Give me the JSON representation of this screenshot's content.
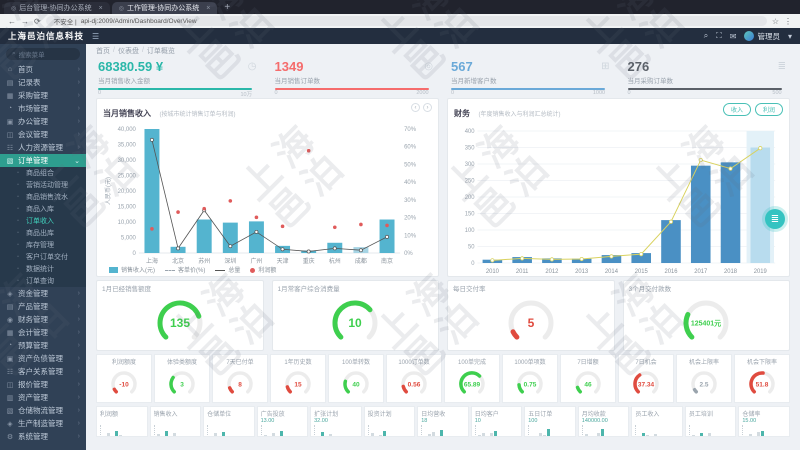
{
  "browser": {
    "tabs": [
      {
        "title": "后台管理-协同办公系统",
        "favicon": "◎",
        "close": "×"
      },
      {
        "title": "工作管理-协同办公系统",
        "favicon": "◎",
        "close": "×"
      }
    ],
    "new_tab": "+",
    "back": "←",
    "forward": "→",
    "refresh": "⟳",
    "security": "不安全 |",
    "url": "api-dj:2009/Admin/Dashboard/OverView",
    "star": "☆",
    "more": "⋮"
  },
  "header": {
    "brand": "上海邑泊信息科技",
    "hamburger": "☰",
    "search_icon": "⌕",
    "fullscreen_icon": "⛶",
    "mail_icon": "✉",
    "user": "管理员",
    "caret": "▾"
  },
  "sidebar": {
    "search_placeholder": "搜索菜单",
    "search_icon": "⌕",
    "items_top": [
      {
        "icon": "⌂",
        "label": "首页"
      },
      {
        "icon": "▤",
        "label": "记录表"
      },
      {
        "icon": "▦",
        "label": "采购管理"
      },
      {
        "icon": "◔",
        "label": "市场管理"
      },
      {
        "icon": "▣",
        "label": "办公管理"
      },
      {
        "icon": "◫",
        "label": "会议管理"
      },
      {
        "icon": "☷",
        "label": "人力资源管理"
      }
    ],
    "active": {
      "icon": "▧",
      "label": "订单管理",
      "caret": "⌄"
    },
    "submenu": [
      {
        "label": "商品组合"
      },
      {
        "label": "营销活动管理"
      },
      {
        "label": "商品销售流水"
      },
      {
        "label": "商品入库"
      },
      {
        "label": "订单收入",
        "active": true
      },
      {
        "label": "商品出库"
      },
      {
        "label": "库存管理"
      },
      {
        "label": "客户订单交付"
      },
      {
        "label": "数据统计"
      },
      {
        "label": "订单查询"
      }
    ],
    "items_bottom": [
      {
        "icon": "◈",
        "label": "资金管理"
      },
      {
        "icon": "▤",
        "label": "产品管理"
      },
      {
        "icon": "◉",
        "label": "财务管理"
      },
      {
        "icon": "▦",
        "label": "会计管理"
      },
      {
        "icon": "◔",
        "label": "预算管理"
      },
      {
        "icon": "▣",
        "label": "资产负债管理"
      },
      {
        "icon": "☷",
        "label": "客户关系管理"
      },
      {
        "icon": "◫",
        "label": "报价管理"
      },
      {
        "icon": "▥",
        "label": "资产管理"
      },
      {
        "icon": "▧",
        "label": "仓储物流管理"
      },
      {
        "icon": "◈",
        "label": "生产制造管理"
      },
      {
        "icon": "⚙",
        "label": "系统管理"
      }
    ]
  },
  "breadcrumb": [
    "首页",
    "仪表盘",
    "订单概览"
  ],
  "stats": [
    {
      "value": "68380.59 ¥",
      "label": "当月销售收入金额",
      "color": "#2ab7a9",
      "range": [
        "0",
        "10万"
      ],
      "icon": "◷",
      "icon_name": "clock-icon"
    },
    {
      "value": "1349",
      "label": "当月销售订单数",
      "color": "#f56c6c",
      "range": [
        "0",
        "2000"
      ],
      "icon": "◎",
      "icon_name": "target-icon"
    },
    {
      "value": "567",
      "label": "当月新增客户数",
      "color": "#6aa9d8",
      "range": [
        "0",
        "1000"
      ],
      "icon": "⊞",
      "icon_name": "grid-icon"
    },
    {
      "value": "276",
      "label": "当月采购订单数",
      "color": "#5a6068",
      "range": [
        "0",
        "500"
      ],
      "icon": "≣",
      "icon_name": "list-icon"
    }
  ],
  "watermark": {
    "text": "上海邑泊"
  },
  "chart_data": [
    {
      "type": "bar",
      "title": "当月销售收入",
      "subtitle": "(按城市统计销售订单与利润)",
      "pager": [
        "‹",
        "›"
      ],
      "ylabel": "人民币(元)",
      "categories": [
        "上海",
        "北京",
        "苏州",
        "深圳",
        "广州",
        "天津",
        "重庆",
        "杭州",
        "成都",
        "南京"
      ],
      "series": [
        {
          "name": "销售收入(元)",
          "type": "bar",
          "color": "#54b4cf",
          "values": [
            40000,
            2000,
            10800,
            9800,
            10200,
            2300,
            800,
            3300,
            1900,
            10800
          ]
        },
        {
          "name": "总量",
          "type": "line",
          "color": "#555555",
          "values": [
            36500,
            1500,
            13800,
            2200,
            6800,
            1200,
            500,
            1500,
            900,
            5200
          ]
        },
        {
          "name": "利润额",
          "type": "scatter",
          "color": "#e05b5b",
          "values": [
            7800,
            13200,
            14300,
            16800,
            11500,
            8600,
            33000,
            8300,
            9200,
            8900
          ]
        }
      ],
      "legend": [
        {
          "swatch": "bar",
          "label": "销售收入(元)"
        },
        {
          "swatch": "dash",
          "label": "客单价(%)"
        },
        {
          "swatch": "line",
          "label": "总量"
        },
        {
          "swatch": "dot",
          "label": "利润额"
        }
      ],
      "ylim": [
        0,
        40000
      ],
      "yticks": [
        "40,000",
        "35,000",
        "30,000",
        "25,000",
        "20,000",
        "15,000",
        "10,000",
        "5,000",
        "0"
      ],
      "right_yticks": [
        "70%",
        "60%",
        "50%",
        "40%",
        "30%",
        "20%",
        "10%",
        "0%"
      ],
      "highlight_bar_index": 8
    },
    {
      "type": "bar",
      "title": "财务",
      "subtitle": "(年度销售收入与利润汇总统计)",
      "buttons": [
        "收入",
        "利润"
      ],
      "fab_icon": "≣",
      "categories": [
        "2010",
        "2011",
        "2012",
        "2013",
        "2014",
        "2015",
        "2016",
        "2017",
        "2018",
        "2019"
      ],
      "series": [
        {
          "name": "收入",
          "type": "bar",
          "color": "#4a90c4",
          "values": [
            10,
            18,
            14,
            13,
            24,
            30,
            130,
            295,
            305,
            350
          ]
        },
        {
          "name": "利润",
          "type": "line",
          "color": "#d9d25f",
          "values": [
            8,
            14,
            11,
            12,
            20,
            27,
            125,
            312,
            286,
            348
          ]
        }
      ],
      "highlight_index": 9,
      "ylim": [
        0,
        400
      ],
      "yticks": [
        "400",
        "350",
        "300",
        "250",
        "200",
        "150",
        "100",
        "50",
        "0"
      ],
      "grid": true
    },
    {
      "type": "gauge",
      "items": [
        {
          "label": "1月已经销售额度",
          "value": "135",
          "percent": 76,
          "color": "#3ecf4e"
        },
        {
          "label": "1月常客户综合消费量",
          "value": "10",
          "percent": 68,
          "color": "#3ecf4e"
        },
        {
          "label": "每日交付率",
          "value": "5",
          "percent": 7,
          "color": "#e04b3f"
        },
        {
          "label": "3个月交付款数",
          "value": "125401元",
          "percent": 26,
          "color": "#3ecf4e"
        }
      ]
    },
    {
      "type": "gauge",
      "items": [
        {
          "label": "利润额度",
          "value": "-10",
          "percent": 6,
          "color": "#e04b3f"
        },
        {
          "label": "体验类额度",
          "value": "3",
          "percent": 30,
          "color": "#3ecf4e"
        },
        {
          "label": "7天已付单",
          "value": "8",
          "percent": 9,
          "color": "#e04b3f"
        },
        {
          "label": "1年历史数",
          "value": "15",
          "percent": 11,
          "color": "#e04b3f"
        },
        {
          "label": "100单转数",
          "value": "40",
          "percent": 22,
          "color": "#3ecf4e"
        },
        {
          "label": "1000订单数",
          "value": "0.56",
          "percent": 12,
          "color": "#e04b3f"
        },
        {
          "label": "100单完成",
          "value": "65.89",
          "percent": 66,
          "color": "#3ecf4e"
        },
        {
          "label": "1000单项数",
          "value": "0.75",
          "percent": 15,
          "color": "#3ecf4e"
        },
        {
          "label": "7日增额",
          "value": "46",
          "percent": 10,
          "color": "#3ecf4e"
        },
        {
          "label": "7日机会",
          "value": "37.34",
          "percent": 37,
          "color": "#e04b3f"
        },
        {
          "label": "机会上限率",
          "value": "2.5",
          "percent": 5,
          "color": "#9aa4ad"
        },
        {
          "label": "机会下限率",
          "value": "51.8",
          "percent": 52,
          "color": "#e04b3f"
        }
      ]
    },
    {
      "type": "bar",
      "items": [
        {
          "label": "利润额",
          "value": "",
          "bars": [
            20,
            45,
            15,
            60,
            30
          ]
        },
        {
          "label": "销售收入",
          "value": "",
          "bars": [
            35,
            20,
            55,
            25,
            40
          ]
        },
        {
          "label": "仓储单位",
          "value": "",
          "bars": [
            15,
            40,
            25,
            50,
            20
          ]
        },
        {
          "label": "广告投放",
          "value": "13.00",
          "bars": [
            30,
            15,
            45,
            20,
            60
          ]
        },
        {
          "label": "扩张计划",
          "value": "32.00",
          "bars": [
            25,
            50,
            20,
            35,
            15
          ]
        },
        {
          "label": "投资计划",
          "value": "",
          "bars": [
            40,
            20,
            30,
            55,
            25
          ]
        },
        {
          "label": "日均营收",
          "value": "18",
          "bars": [
            20,
            35,
            50,
            25,
            65
          ]
        },
        {
          "label": "日均客户",
          "value": "10",
          "bars": [
            30,
            45,
            20,
            40,
            55
          ]
        },
        {
          "label": "五日订单",
          "value": "100",
          "bars": [
            25,
            15,
            40,
            30,
            70
          ]
        },
        {
          "label": "月均收款",
          "value": "140000.00",
          "bars": [
            35,
            25,
            15,
            45,
            75
          ]
        },
        {
          "label": "员工收入",
          "value": "",
          "bars": [
            20,
            40,
            30,
            15,
            35
          ]
        },
        {
          "label": "员工培训",
          "value": "",
          "bars": [
            30,
            20,
            45,
            25,
            40
          ]
        },
        {
          "label": "仓储率",
          "value": "15.00",
          "bars": [
            25,
            35,
            20,
            50,
            60
          ]
        }
      ]
    }
  ]
}
